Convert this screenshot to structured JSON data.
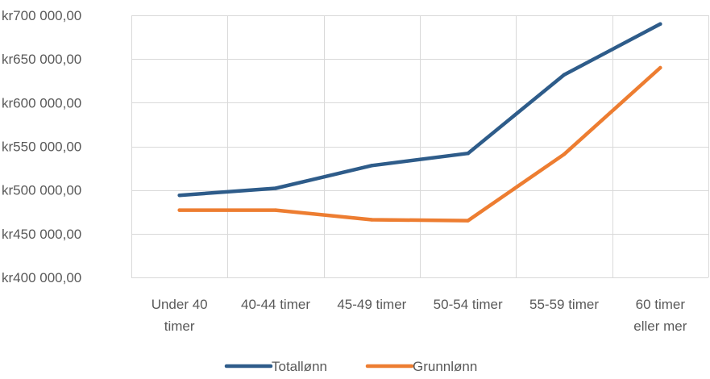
{
  "chart_data": {
    "type": "line",
    "categories": [
      [
        "Under 40",
        "timer"
      ],
      [
        "40-44 timer"
      ],
      [
        "45-49 timer"
      ],
      [
        "50-54 timer"
      ],
      [
        "55-59 timer"
      ],
      [
        "60 timer",
        "eller mer"
      ]
    ],
    "y_tick_labels": [
      "kr400 000,00",
      "kr450 000,00",
      "kr500 000,00",
      "kr550 000,00",
      "kr600 000,00",
      "kr650 000,00",
      "kr700 000,00"
    ],
    "y_ticks": [
      400000,
      450000,
      500000,
      550000,
      600000,
      650000,
      700000
    ],
    "ylim": [
      400000,
      700000
    ],
    "grid": true,
    "legend_position": "bottom",
    "series": [
      {
        "name": "Totallønn",
        "color": "#2E5C8A",
        "values": [
          494000,
          502000,
          528000,
          542000,
          632000,
          690000
        ]
      },
      {
        "name": "Grunnlønn",
        "color": "#ED7D31",
        "values": [
          477000,
          477000,
          466000,
          465000,
          541000,
          640000
        ]
      }
    ]
  }
}
